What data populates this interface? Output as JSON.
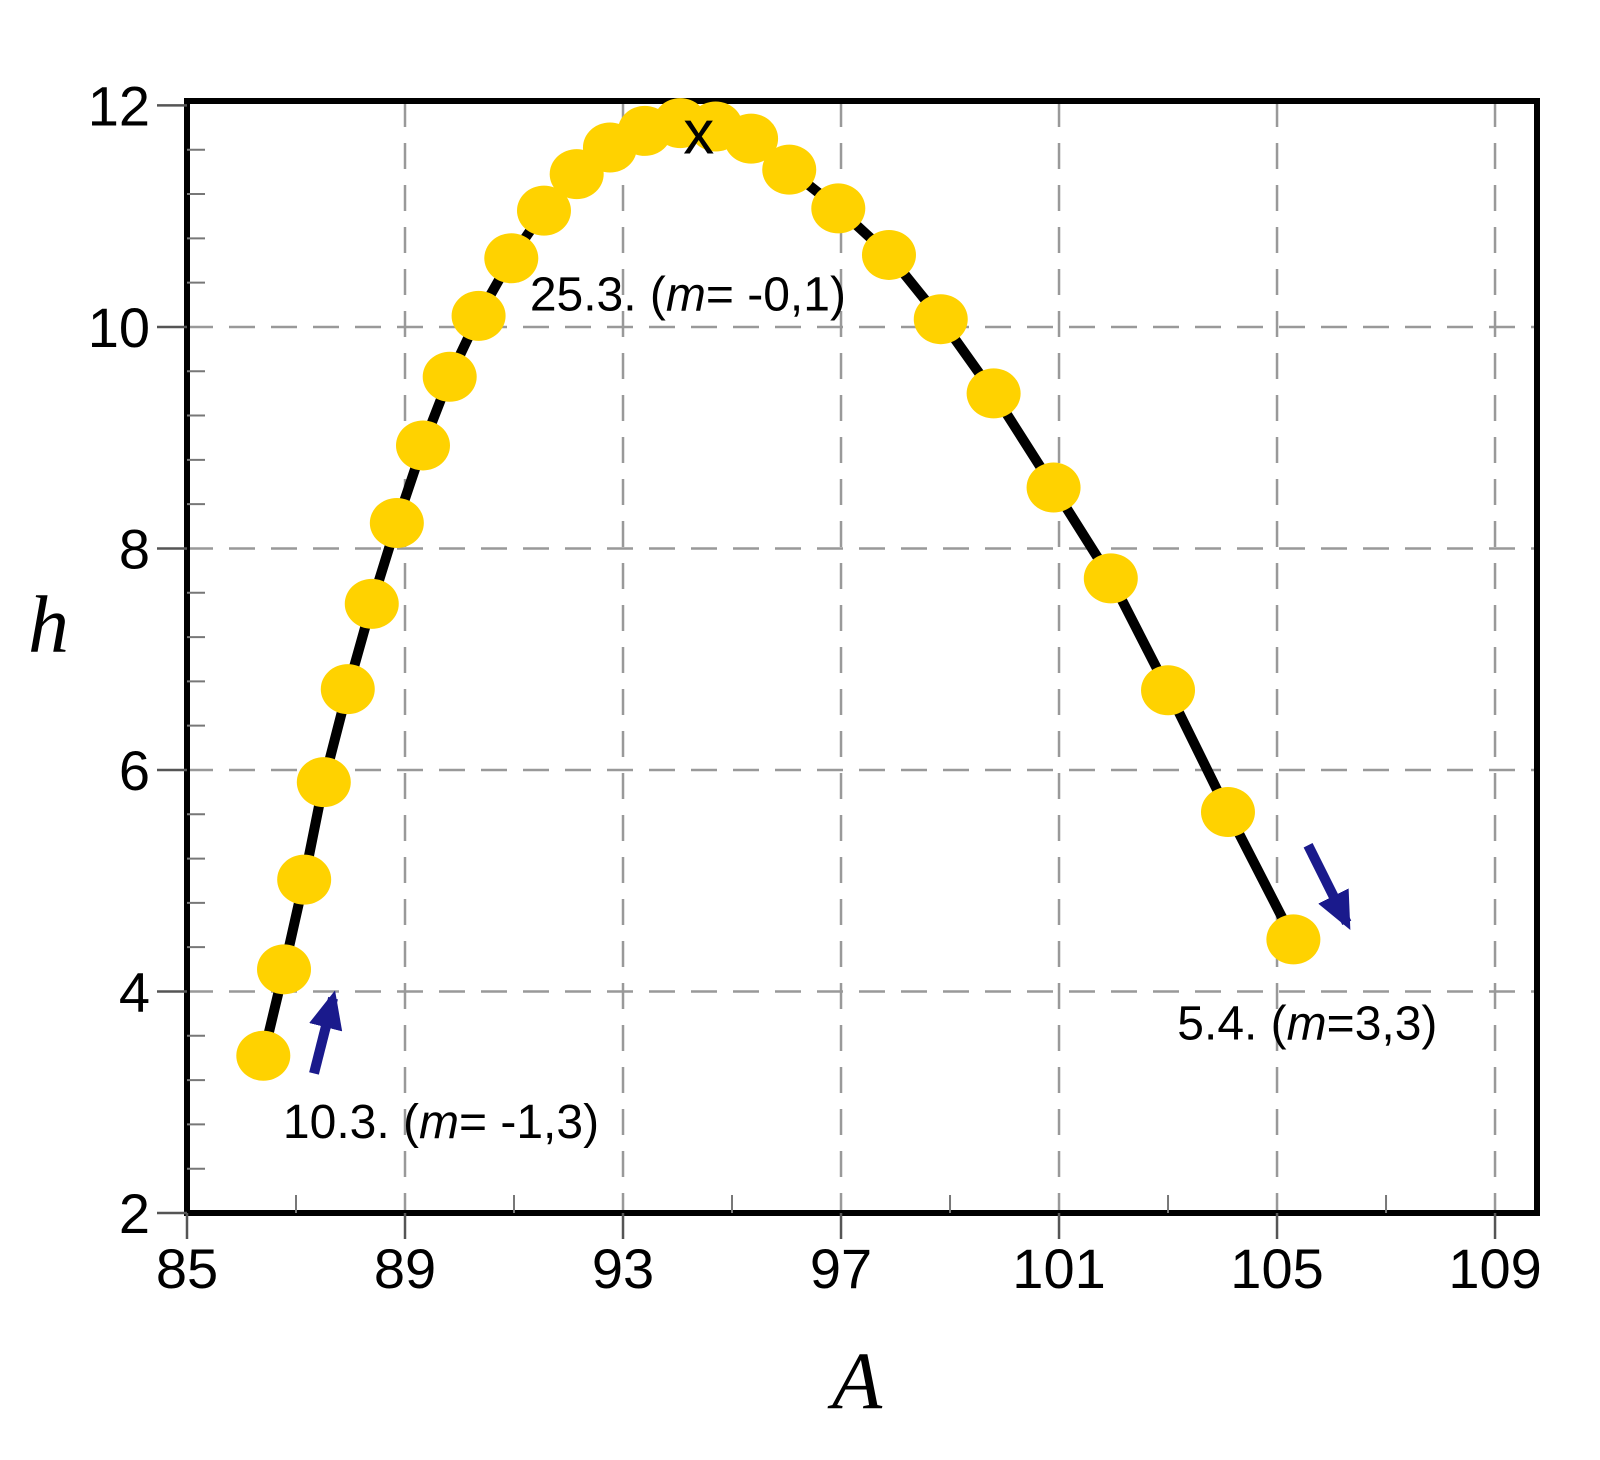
{
  "chart_data": {
    "type": "scatter",
    "title": "",
    "xlabel": "A",
    "ylabel": "h",
    "x_range": [
      85,
      109.77
    ],
    "y_range": [
      2,
      12.04
    ],
    "x_major_ticks": [
      85,
      89,
      93,
      97,
      101,
      105,
      109
    ],
    "x_minor_ticks": [
      87,
      91,
      95,
      99,
      103,
      107
    ],
    "y_major_ticks": [
      2,
      4,
      6,
      8,
      10,
      12
    ],
    "y_minor_ticks": [
      2.4,
      2.8,
      3.2,
      3.6,
      4.4,
      4.8,
      5.2,
      5.6,
      6.4,
      6.8,
      7.2,
      7.6,
      8.4,
      8.8,
      9.2,
      9.6,
      10.4,
      10.8,
      11.2,
      11.6
    ],
    "x_gridlines": [
      89,
      93,
      97,
      101,
      105,
      109
    ],
    "y_gridlines": [
      4,
      6,
      8,
      10
    ],
    "grid": "dashed",
    "legend": "none",
    "series": [
      {
        "name": "daily-positions",
        "marker": "circle",
        "marker_color": "#FFD200",
        "line_color": "#000000",
        "points": [
          [
            86.4,
            3.42
          ],
          [
            86.78,
            4.2
          ],
          [
            87.15,
            5.01
          ],
          [
            87.51,
            5.89
          ],
          [
            87.95,
            6.73
          ],
          [
            88.39,
            7.5
          ],
          [
            88.85,
            8.23
          ],
          [
            89.33,
            8.93
          ],
          [
            89.82,
            9.55
          ],
          [
            90.35,
            10.1
          ],
          [
            90.95,
            10.62
          ],
          [
            91.55,
            11.05
          ],
          [
            92.15,
            11.38
          ],
          [
            92.76,
            11.62
          ],
          [
            93.4,
            11.77
          ],
          [
            94.05,
            11.84
          ],
          [
            94.7,
            11.81
          ],
          [
            95.35,
            11.7
          ],
          [
            96.05,
            11.42
          ],
          [
            96.95,
            11.07
          ],
          [
            97.88,
            10.65
          ],
          [
            98.83,
            10.07
          ],
          [
            99.8,
            9.4
          ],
          [
            100.9,
            8.55
          ],
          [
            101.95,
            7.73
          ],
          [
            103.0,
            6.72
          ],
          [
            104.1,
            5.62
          ],
          [
            105.3,
            4.47
          ]
        ]
      }
    ],
    "annotations": [
      {
        "id": "date-peak",
        "prefix": "25.3. (",
        "italic": "m",
        "suffix": "= -0,1)",
        "x": 91.29,
        "y": 10.3
      },
      {
        "id": "date-start",
        "prefix": "10.3. (",
        "italic": "m",
        "suffix": "= -1,3)",
        "x": 86.76,
        "y": 2.83
      },
      {
        "id": "date-end",
        "prefix": "5.4. (",
        "italic": "m",
        "suffix": "=3,3)",
        "x": 103.17,
        "y": 3.72
      },
      {
        "id": "peak-cross",
        "text": "x",
        "x": 94.39,
        "y": 11.71
      }
    ],
    "arrows": [
      {
        "id": "direction-start",
        "from": [
          87.33,
          3.26
        ],
        "to": [
          87.68,
          3.94
        ]
      },
      {
        "id": "direction-end",
        "from": [
          105.57,
          5.32
        ],
        "to": [
          106.28,
          4.62
        ]
      }
    ],
    "colors": {
      "marker": "#FFD200",
      "line": "#000000",
      "grid": "#999999",
      "arrow": "#1A1A8C",
      "text": "#000000",
      "background": "#FFFFFF"
    }
  }
}
